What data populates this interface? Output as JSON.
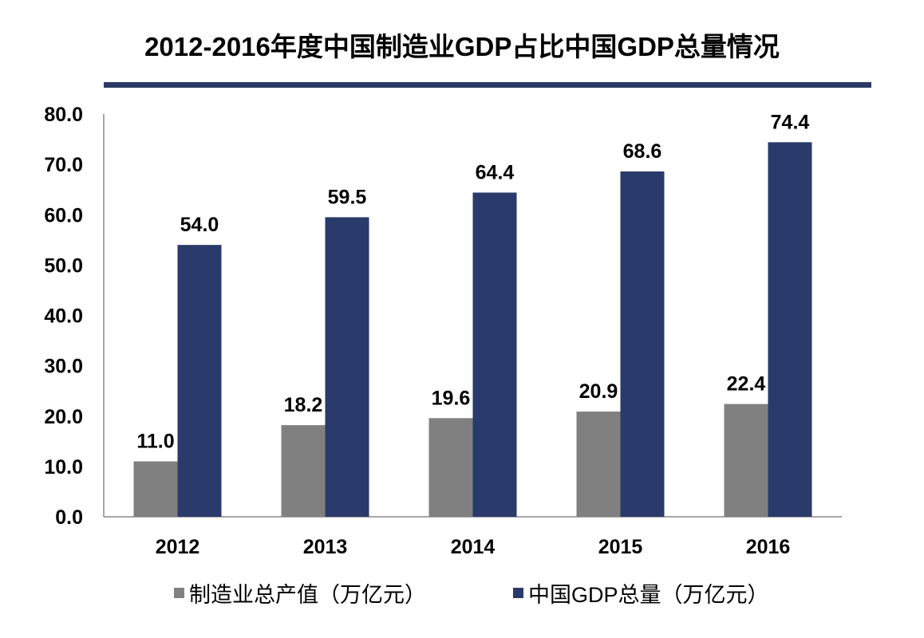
{
  "chart_data": {
    "type": "bar",
    "title": "2012-2016年度中国制造业GDP占比中国GDP总量情况",
    "categories": [
      "2012",
      "2013",
      "2014",
      "2015",
      "2016"
    ],
    "series": [
      {
        "name": "制造业总产值（万亿元）",
        "values": [
          11.0,
          18.2,
          19.6,
          20.9,
          22.4
        ],
        "color": "#808080"
      },
      {
        "name": "中国GDP总量（万亿元）",
        "values": [
          54.0,
          59.5,
          64.4,
          68.6,
          74.4
        ],
        "color": "#2a3a6a"
      }
    ],
    "yticks": [
      "0.0",
      "10.0",
      "20.0",
      "30.0",
      "40.0",
      "50.0",
      "60.0",
      "70.0",
      "80.0"
    ],
    "ylim": [
      0,
      80
    ],
    "xlabel": "",
    "ylabel": "",
    "grid": false,
    "legend": "bottom",
    "title_rule_color": "#2a3a66"
  }
}
